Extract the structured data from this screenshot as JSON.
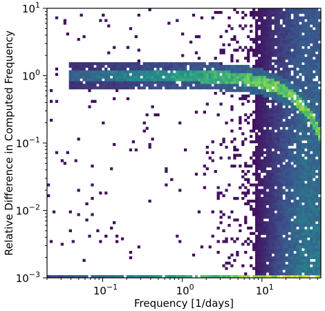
{
  "chart_data": {
    "type": "heatmap",
    "title": "",
    "xlabel": "Frequency [1/days]",
    "ylabel": "Relative Difference in Computed Frequency",
    "xscale": "log",
    "yscale": "log",
    "xlim": [
      0.02,
      55
    ],
    "ylim": [
      0.001,
      10
    ],
    "x_ticks": [
      {
        "value": 0.1,
        "base": "10",
        "exp": "−1"
      },
      {
        "value": 1,
        "base": "10",
        "exp": "0"
      },
      {
        "value": 10,
        "base": "10",
        "exp": "1"
      }
    ],
    "y_ticks": [
      {
        "value": 0.001,
        "base": "10",
        "exp": "−3"
      },
      {
        "value": 0.01,
        "base": "10",
        "exp": "−2"
      },
      {
        "value": 0.1,
        "base": "10",
        "exp": "−1"
      },
      {
        "value": 1,
        "base": "10",
        "exp": "0"
      },
      {
        "value": 10,
        "base": "10",
        "exp": "1"
      }
    ],
    "grid": false,
    "colormap": [
      "#440154",
      "#3b528b",
      "#21918c",
      "#5ec962",
      "#fde725"
    ],
    "features": [
      {
        "name": "ridge",
        "description": "dense band at relative difference ~1 from 0.04 to ~50 1/days, bending downward at high frequency"
      },
      {
        "name": "floor",
        "description": "dense band at relative difference 1e-3 brightening toward high frequency"
      },
      {
        "name": "high-frequency-column",
        "description": "broad dense region above ~5 1/days spanning full y range"
      }
    ]
  }
}
